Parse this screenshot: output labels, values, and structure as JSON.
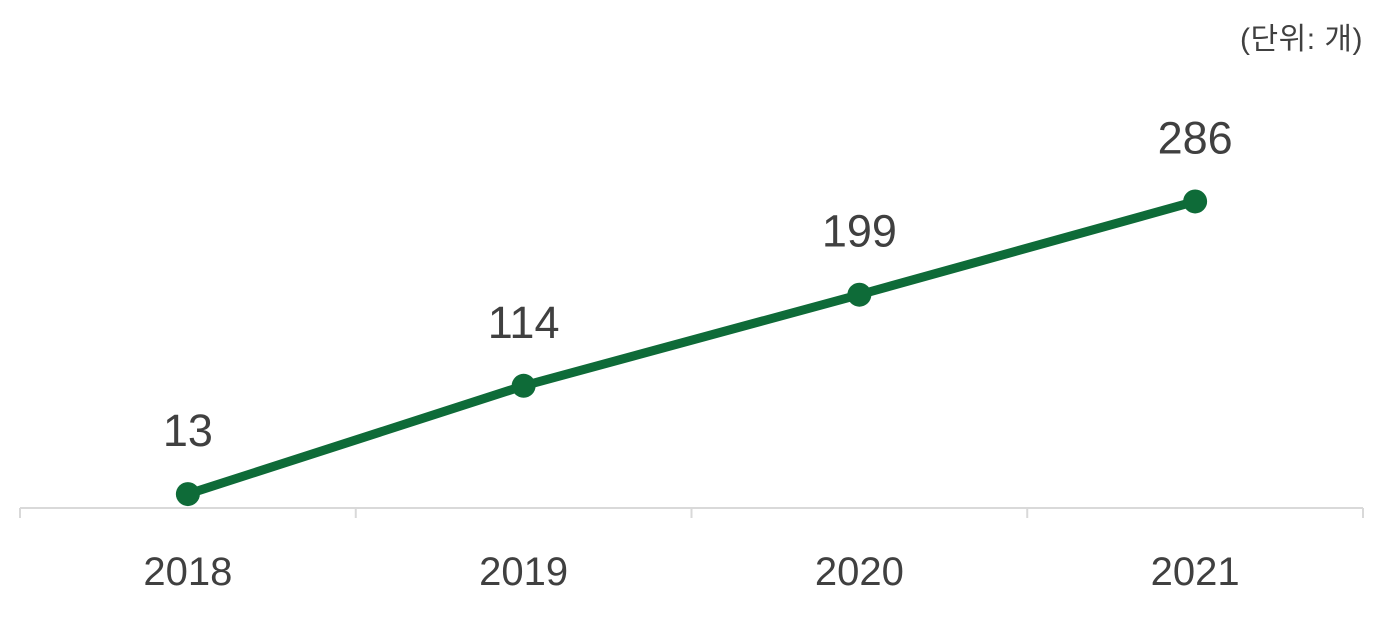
{
  "header": {
    "unit_label": "(단위: 개)"
  },
  "chart_data": {
    "type": "line",
    "title": "",
    "xlabel": "",
    "ylabel": "",
    "categories": [
      "2018",
      "2019",
      "2020",
      "2021"
    ],
    "values": [
      13,
      114,
      199,
      286
    ],
    "data_labels": [
      "13",
      "114",
      "199",
      "286"
    ],
    "unit_annotation": "(단위: 개)",
    "ylim": [
      0,
      320
    ],
    "grid": false,
    "legend": false,
    "colors": {
      "line": "#0e6b38",
      "marker": "#0e6b38",
      "data_label": "#404040",
      "axis_line": "#d9d9d9",
      "tick": "#d9d9d9",
      "tick_label": "#404040",
      "background": "#ffffff"
    }
  }
}
